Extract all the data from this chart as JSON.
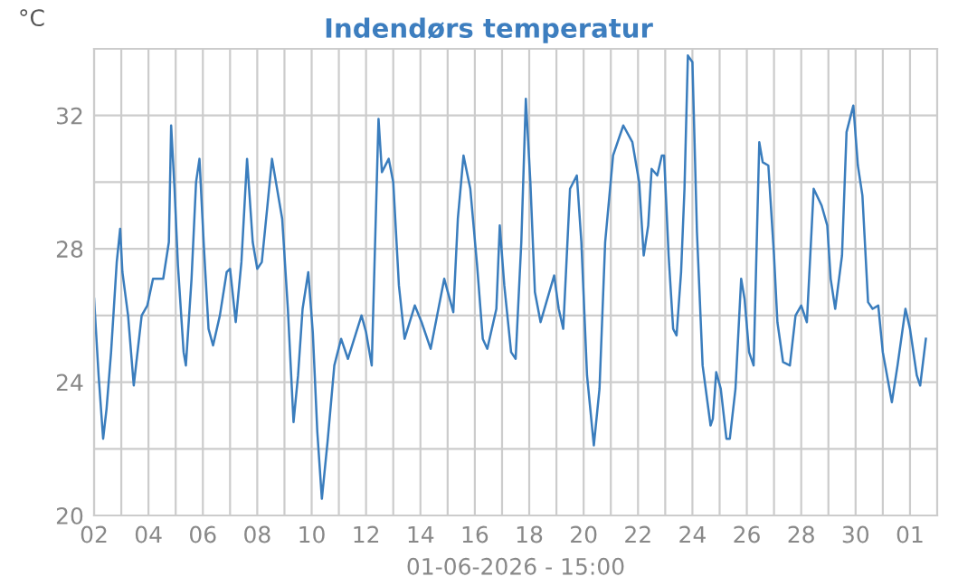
{
  "chart_data": {
    "type": "line",
    "title": "Indendørs temperatur",
    "xlabel": "01-06-2026 - 15:00",
    "ylabel": "°C",
    "x": [
      "2026-05-02T00:00",
      "2026-05-02T04:00",
      "2026-05-02T08:00",
      "2026-05-02T11:00",
      "2026-05-02T15:00",
      "2026-05-02T20:00",
      "2026-05-02T23:00",
      "2026-05-03T01:00",
      "2026-05-03T06:00",
      "2026-05-03T11:00",
      "2026-05-03T18:00",
      "2026-05-03T23:00",
      "2026-05-04T04:00",
      "2026-05-04T13:00",
      "2026-05-04T18:00",
      "2026-05-04T20:00",
      "2026-05-04T23:00",
      "2026-05-05T02:00",
      "2026-05-05T07:00",
      "2026-05-05T09:00",
      "2026-05-05T14:00",
      "2026-05-05T18:00",
      "2026-05-05T21:00",
      "2026-05-06T01:00",
      "2026-05-06T05:00",
      "2026-05-06T09:00",
      "2026-05-06T15:00",
      "2026-05-06T21:00",
      "2026-05-07T00:00",
      "2026-05-07T05:00",
      "2026-05-07T10:00",
      "2026-05-07T15:00",
      "2026-05-07T20:00",
      "2026-05-08T00:00",
      "2026-05-08T04:00",
      "2026-05-08T09:00",
      "2026-05-08T13:00",
      "2026-05-08T22:00",
      "2026-05-09T03:00",
      "2026-05-09T08:00",
      "2026-05-09T12:00",
      "2026-05-09T16:00",
      "2026-05-09T21:00",
      "2026-05-10T01:00",
      "2026-05-10T05:00",
      "2026-05-10T09:00",
      "2026-05-10T14:00",
      "2026-05-10T20:00",
      "2026-05-11T02:00",
      "2026-05-11T08:00",
      "2026-05-11T20:00",
      "2026-05-12T00:00",
      "2026-05-12T05:00",
      "2026-05-12T11:00",
      "2026-05-12T14:00",
      "2026-05-12T20:00",
      "2026-05-13T00:00",
      "2026-05-13T05:00",
      "2026-05-13T10:00",
      "2026-05-13T19:00",
      "2026-05-14T01:00",
      "2026-05-14T09:00",
      "2026-05-14T21:00",
      "2026-05-15T05:00",
      "2026-05-15T09:00",
      "2026-05-15T14:00",
      "2026-05-15T20:00",
      "2026-05-16T02:00",
      "2026-05-16T07:00",
      "2026-05-16T11:00",
      "2026-05-16T19:00",
      "2026-05-16T22:00",
      "2026-05-17T02:00",
      "2026-05-17T08:00",
      "2026-05-17T12:00",
      "2026-05-17T17:00",
      "2026-05-17T21:00",
      "2026-05-18T01:00",
      "2026-05-18T05:00",
      "2026-05-18T10:00",
      "2026-05-18T16:00",
      "2026-05-18T22:00",
      "2026-05-19T02:00",
      "2026-05-19T06:00",
      "2026-05-19T12:00",
      "2026-05-19T18:00",
      "2026-05-19T22:00",
      "2026-05-20T03:00",
      "2026-05-20T09:00",
      "2026-05-20T14:00",
      "2026-05-20T19:00",
      "2026-05-21T02:00",
      "2026-05-21T11:00",
      "2026-05-21T19:00",
      "2026-05-22T01:00",
      "2026-05-22T05:00",
      "2026-05-22T09:00",
      "2026-05-22T12:00",
      "2026-05-22T17:00",
      "2026-05-22T21:00",
      "2026-05-22T23:00",
      "2026-05-23T03:00",
      "2026-05-23T07:00",
      "2026-05-23T10:00",
      "2026-05-23T14:00",
      "2026-05-23T17:00",
      "2026-05-23T20:00",
      "2026-05-24T00:00",
      "2026-05-24T04:00",
      "2026-05-24T09:00",
      "2026-05-24T16:00",
      "2026-05-24T18:00",
      "2026-05-24T21:00",
      "2026-05-25T01:00",
      "2026-05-25T06:00",
      "2026-05-25T09:00",
      "2026-05-25T14:00",
      "2026-05-25T19:00",
      "2026-05-25T22:00",
      "2026-05-26T02:00",
      "2026-05-26T06:00",
      "2026-05-26T11:00",
      "2026-05-26T14:00",
      "2026-05-26T19:00",
      "2026-05-27T00:00",
      "2026-05-27T03:00",
      "2026-05-27T08:00",
      "2026-05-27T14:00",
      "2026-05-27T19:00",
      "2026-05-28T00:00",
      "2026-05-28T05:00",
      "2026-05-28T11:00",
      "2026-05-28T18:00",
      "2026-05-28T23:00",
      "2026-05-29T02:00",
      "2026-05-29T06:00",
      "2026-05-29T12:00",
      "2026-05-29T16:00",
      "2026-05-29T22:00",
      "2026-05-30T02:00",
      "2026-05-30T06:00",
      "2026-05-30T11:00",
      "2026-05-30T15:00",
      "2026-05-30T20:00",
      "2026-05-31T00:00",
      "2026-05-31T08:00",
      "2026-05-31T13:00",
      "2026-05-31T20:00",
      "2026-06-01T00:00",
      "2026-06-01T06:00",
      "2026-06-01T09:00",
      "2026-06-01T14:00"
    ],
    "series": [
      {
        "color": "#3a7dbd",
        "values": [
          26.5,
          24.2,
          22.3,
          23.2,
          24.9,
          27.6,
          28.6,
          27.3,
          26.0,
          23.9,
          26.0,
          26.3,
          27.1,
          27.1,
          28.2,
          31.7,
          29.8,
          27.5,
          24.9,
          24.5,
          27.1,
          30.0,
          30.7,
          28.0,
          25.6,
          25.1,
          26.0,
          27.3,
          27.4,
          25.8,
          27.6,
          30.7,
          28.2,
          27.4,
          27.6,
          29.3,
          30.7,
          28.9,
          26.2,
          22.8,
          24.2,
          26.2,
          27.3,
          25.5,
          22.5,
          20.5,
          22.2,
          24.5,
          25.3,
          24.7,
          26.0,
          25.5,
          24.5,
          31.9,
          30.3,
          30.7,
          30.0,
          26.9,
          25.3,
          26.3,
          25.8,
          25.0,
          27.1,
          26.1,
          28.9,
          30.8,
          29.8,
          27.5,
          25.3,
          25.0,
          26.2,
          28.7,
          26.9,
          24.9,
          24.7,
          28.2,
          32.5,
          30.0,
          26.7,
          25.8,
          26.5,
          27.2,
          26.2,
          25.6,
          29.8,
          30.2,
          28.2,
          24.2,
          22.1,
          23.8,
          28.2,
          30.8,
          31.7,
          31.2,
          30.0,
          27.8,
          28.7,
          30.4,
          30.2,
          30.8,
          30.8,
          27.8,
          25.6,
          25.4,
          27.3,
          29.8,
          33.8,
          33.6,
          28.5,
          24.5,
          22.7,
          22.9,
          24.3,
          23.8,
          22.3,
          22.3,
          23.8,
          27.1,
          26.5,
          24.9,
          24.5,
          31.2,
          30.6,
          30.5,
          27.8,
          25.8,
          24.6,
          24.5,
          26.0,
          26.3,
          25.8,
          29.8,
          29.3,
          28.7,
          27.1,
          26.2,
          27.8,
          31.5,
          32.3,
          30.5,
          29.6,
          26.4,
          26.2,
          26.3,
          24.9,
          23.4,
          24.5,
          26.2,
          25.6,
          24.2,
          23.9,
          25.3
        ]
      }
    ],
    "xlim": [
      "2026-05-02",
      "2026-06-02"
    ],
    "xticks": [
      {
        "value": "2026-05-02",
        "label": "02"
      },
      {
        "value": "2026-05-03",
        "label": null
      },
      {
        "value": "2026-05-04",
        "label": "04"
      },
      {
        "value": "2026-05-05",
        "label": null
      },
      {
        "value": "2026-05-06",
        "label": "06"
      },
      {
        "value": "2026-05-07",
        "label": null
      },
      {
        "value": "2026-05-08",
        "label": "08"
      },
      {
        "value": "2026-05-09",
        "label": null
      },
      {
        "value": "2026-05-10",
        "label": "10"
      },
      {
        "value": "2026-05-11",
        "label": null
      },
      {
        "value": "2026-05-12",
        "label": "12"
      },
      {
        "value": "2026-05-13",
        "label": null
      },
      {
        "value": "2026-05-14",
        "label": "14"
      },
      {
        "value": "2026-05-15",
        "label": null
      },
      {
        "value": "2026-05-16",
        "label": "16"
      },
      {
        "value": "2026-05-17",
        "label": null
      },
      {
        "value": "2026-05-18",
        "label": "18"
      },
      {
        "value": "2026-05-19",
        "label": null
      },
      {
        "value": "2026-05-20",
        "label": "20"
      },
      {
        "value": "2026-05-21",
        "label": null
      },
      {
        "value": "2026-05-22",
        "label": "22"
      },
      {
        "value": "2026-05-23",
        "label": null
      },
      {
        "value": "2026-05-24",
        "label": "24"
      },
      {
        "value": "2026-05-25",
        "label": null
      },
      {
        "value": "2026-05-26",
        "label": "26"
      },
      {
        "value": "2026-05-27",
        "label": null
      },
      {
        "value": "2026-05-28",
        "label": "28"
      },
      {
        "value": "2026-05-29",
        "label": null
      },
      {
        "value": "2026-05-30",
        "label": "30"
      },
      {
        "value": "2026-05-31",
        "label": null
      },
      {
        "value": "2026-06-01",
        "label": "01"
      }
    ],
    "ylim": [
      20,
      34
    ],
    "yticks": [
      20,
      {
        "value": 22,
        "label": null
      },
      24,
      {
        "value": 26,
        "label": null
      },
      28,
      {
        "value": 30,
        "label": null
      },
      32
    ],
    "grid": true,
    "marker": "none",
    "line_style": "solid"
  }
}
